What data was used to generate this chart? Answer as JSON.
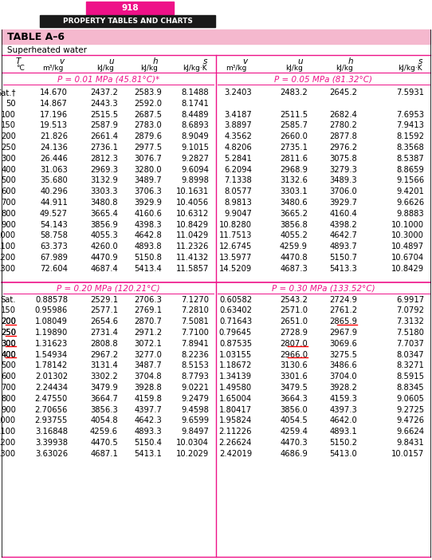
{
  "page_number": "918",
  "header_title": "PROPERTY TABLES AND CHARTS",
  "table_title": "TABLE A–6",
  "subtitle": "Superheated water",
  "section1_label": "P = 0.01 MPa (45.81°C)*",
  "section2_label": "P = 0.05 MPa (81.32°C)",
  "section3_label": "P = 0.20 MPa (120.21°C)",
  "section4_label": "P = 0.30 MPa (133.52°C)",
  "data_01": [
    [
      "Sat.†",
      "14.670",
      "2437.2",
      "2583.9",
      "8.1488"
    ],
    [
      "50",
      "14.867",
      "2443.3",
      "2592.0",
      "8.1741"
    ],
    [
      "100",
      "17.196",
      "2515.5",
      "2687.5",
      "8.4489"
    ],
    [
      "150",
      "19.513",
      "2587.9",
      "2783.0",
      "8.6893"
    ],
    [
      "200",
      "21.826",
      "2661.4",
      "2879.6",
      "8.9049"
    ],
    [
      "250",
      "24.136",
      "2736.1",
      "2977.5",
      "9.1015"
    ],
    [
      "300",
      "26.446",
      "2812.3",
      "3076.7",
      "9.2827"
    ],
    [
      "400",
      "31.063",
      "2969.3",
      "3280.0",
      "9.6094"
    ],
    [
      "500",
      "35.680",
      "3132.9",
      "3489.7",
      "9.8998"
    ],
    [
      "600",
      "40.296",
      "3303.3",
      "3706.3",
      "10.1631"
    ],
    [
      "700",
      "44.911",
      "3480.8",
      "3929.9",
      "10.4056"
    ],
    [
      "800",
      "49.527",
      "3665.4",
      "4160.6",
      "10.6312"
    ],
    [
      "900",
      "54.143",
      "3856.9",
      "4398.3",
      "10.8429"
    ],
    [
      "1000",
      "58.758",
      "4055.3",
      "4642.8",
      "11.0429"
    ],
    [
      "1100",
      "63.373",
      "4260.0",
      "4893.8",
      "11.2326"
    ],
    [
      "1200",
      "67.989",
      "4470.9",
      "5150.8",
      "11.4132"
    ],
    [
      "1300",
      "72.604",
      "4687.4",
      "5413.4",
      "11.5857"
    ]
  ],
  "data_05": [
    [
      "3.2403",
      "2483.2",
      "2645.2",
      "7.5931"
    ],
    [
      "",
      "",
      "",
      ""
    ],
    [
      "3.4187",
      "2511.5",
      "2682.4",
      "7.6953"
    ],
    [
      "3.8897",
      "2585.7",
      "2780.2",
      "7.9413"
    ],
    [
      "4.3562",
      "2660.0",
      "2877.8",
      "8.1592"
    ],
    [
      "4.8206",
      "2735.1",
      "2976.2",
      "8.3568"
    ],
    [
      "5.2841",
      "2811.6",
      "3075.8",
      "8.5387"
    ],
    [
      "6.2094",
      "2968.9",
      "3279.3",
      "8.8659"
    ],
    [
      "7.1338",
      "3132.6",
      "3489.3",
      "9.1566"
    ],
    [
      "8.0577",
      "3303.1",
      "3706.0",
      "9.4201"
    ],
    [
      "8.9813",
      "3480.6",
      "3929.7",
      "9.6626"
    ],
    [
      "9.9047",
      "3665.2",
      "4160.4",
      "9.8883"
    ],
    [
      "10.8280",
      "3856.8",
      "4398.2",
      "10.1000"
    ],
    [
      "11.7513",
      "4055.2",
      "4642.7",
      "10.3000"
    ],
    [
      "12.6745",
      "4259.9",
      "4893.7",
      "10.4897"
    ],
    [
      "13.5977",
      "4470.8",
      "5150.7",
      "10.6704"
    ],
    [
      "14.5209",
      "4687.3",
      "5413.3",
      "10.8429"
    ]
  ],
  "data_020": [
    [
      "Sat.",
      "0.88578",
      "2529.1",
      "2706.3",
      "7.1270"
    ],
    [
      "150",
      "0.95986",
      "2577.1",
      "2769.1",
      "7.2810"
    ],
    [
      "200",
      "1.08049",
      "2654.6",
      "2870.7",
      "7.5081"
    ],
    [
      "250",
      "1.19890",
      "2731.4",
      "2971.2",
      "7.7100"
    ],
    [
      "300",
      "1.31623",
      "2808.8",
      "3072.1",
      "7.8941"
    ],
    [
      "400",
      "1.54934",
      "2967.2",
      "3277.0",
      "8.2236"
    ],
    [
      "500",
      "1.78142",
      "3131.4",
      "3487.7",
      "8.5153"
    ],
    [
      "600",
      "2.01302",
      "3302.2",
      "3704.8",
      "8.7793"
    ],
    [
      "700",
      "2.24434",
      "3479.9",
      "3928.8",
      "9.0221"
    ],
    [
      "800",
      "2.47550",
      "3664.7",
      "4159.8",
      "9.2479"
    ],
    [
      "900",
      "2.70656",
      "3856.3",
      "4397.7",
      "9.4598"
    ],
    [
      "1000",
      "2.93755",
      "4054.8",
      "4642.3",
      "9.6599"
    ],
    [
      "1100",
      "3.16848",
      "4259.6",
      "4893.3",
      "9.8497"
    ],
    [
      "1200",
      "3.39938",
      "4470.5",
      "5150.4",
      "10.0304"
    ],
    [
      "1300",
      "3.63026",
      "4687.1",
      "5413.1",
      "10.2029"
    ]
  ],
  "data_030": [
    [
      "0.60582",
      "2543.2",
      "2724.9",
      "6.9917"
    ],
    [
      "0.63402",
      "2571.0",
      "2761.2",
      "7.0792"
    ],
    [
      "0.71643",
      "2651.0",
      "2865.9",
      "7.3132"
    ],
    [
      "0.79645",
      "2728.9",
      "2967.9",
      "7.5180"
    ],
    [
      "0.87535",
      "2807.0",
      "3069.6",
      "7.7037"
    ],
    [
      "1.03155",
      "2966.0",
      "3275.5",
      "8.0347"
    ],
    [
      "1.18672",
      "3130.6",
      "3486.6",
      "8.3271"
    ],
    [
      "1.34139",
      "3301.6",
      "3704.0",
      "8.5915"
    ],
    [
      "1.49580",
      "3479.5",
      "3928.2",
      "8.8345"
    ],
    [
      "1.65004",
      "3664.3",
      "4159.3",
      "9.0605"
    ],
    [
      "1.80417",
      "3856.0",
      "4397.3",
      "9.2725"
    ],
    [
      "1.95824",
      "4054.5",
      "4642.0",
      "9.4726"
    ],
    [
      "2.11226",
      "4259.4",
      "4893.1",
      "9.6624"
    ],
    [
      "2.26624",
      "4470.3",
      "5150.2",
      "9.8431"
    ],
    [
      "2.42019",
      "4686.9",
      "5413.0",
      "10.0157"
    ]
  ],
  "underline_020_rows": [
    2,
    3,
    4,
    5
  ],
  "underline_030_values": [
    "2865.9",
    "2807.0",
    "2966.0"
  ]
}
